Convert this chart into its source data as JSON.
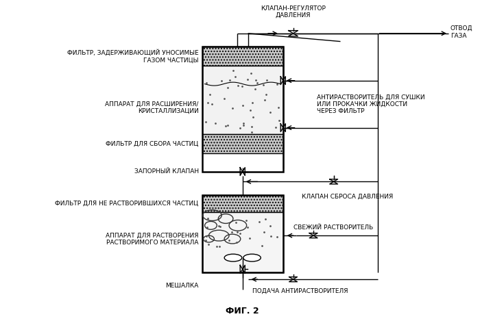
{
  "title": "ФИГ. 2",
  "background_color": "#ffffff",
  "labels": {
    "klap_reg": "КЛАПАН-РЕГУЛЯТОР\nДАВЛЕНИЯ",
    "otvod_gaza": "ОТВОД\nГАЗА",
    "filtr_top": "ФИЛЬТР, ЗАДЕРЖИВАЮЩИЙ УНОСИМЫЕ\nГАЗОМ ЧАСТИЦЫ",
    "apparat_top": "АППАРАТ ДЛЯ РАСШИРЕНИЯ/\nКРИСТАЛЛИЗАЦИИ",
    "filtr_sborn": "ФИЛЬТР ДЛЯ СБОРА ЧАСТИЦ",
    "antirastv": "АНТИРАСТВОРИТЕЛЬ ДЛЯ СУШКИ\nИЛИ ПРОКАЧКИ ЖИДКОСТИ\nЧЕРЕЗ ФИЛЬТР",
    "zaporn_klap": "ЗАПОРНЫЙ КЛАПАН",
    "klap_sbrosa": "КЛАПАН СБРОСА ДАВЛЕНИЯ",
    "filtr_nerastv": "ФИЛЬТР ДЛЯ НЕ РАСТВОРИВШИХСЯ ЧАСТИЦ",
    "apparat_rastv": "АППАРАТ ДЛЯ РАСТВОРЕНИЯ\nРАСТВОРИМОГО МАТЕРИАЛА",
    "svezh_rastv": "СВЕЖИЙ РАСТВОРИТЕЛЬ",
    "podacha_antirastv": "ПОДАЧА АНТИРАСТВОРИТЕЛЯ",
    "meshalka": "МЕШАЛКА"
  },
  "fontsize": 6.5,
  "fontsize_title": 9
}
